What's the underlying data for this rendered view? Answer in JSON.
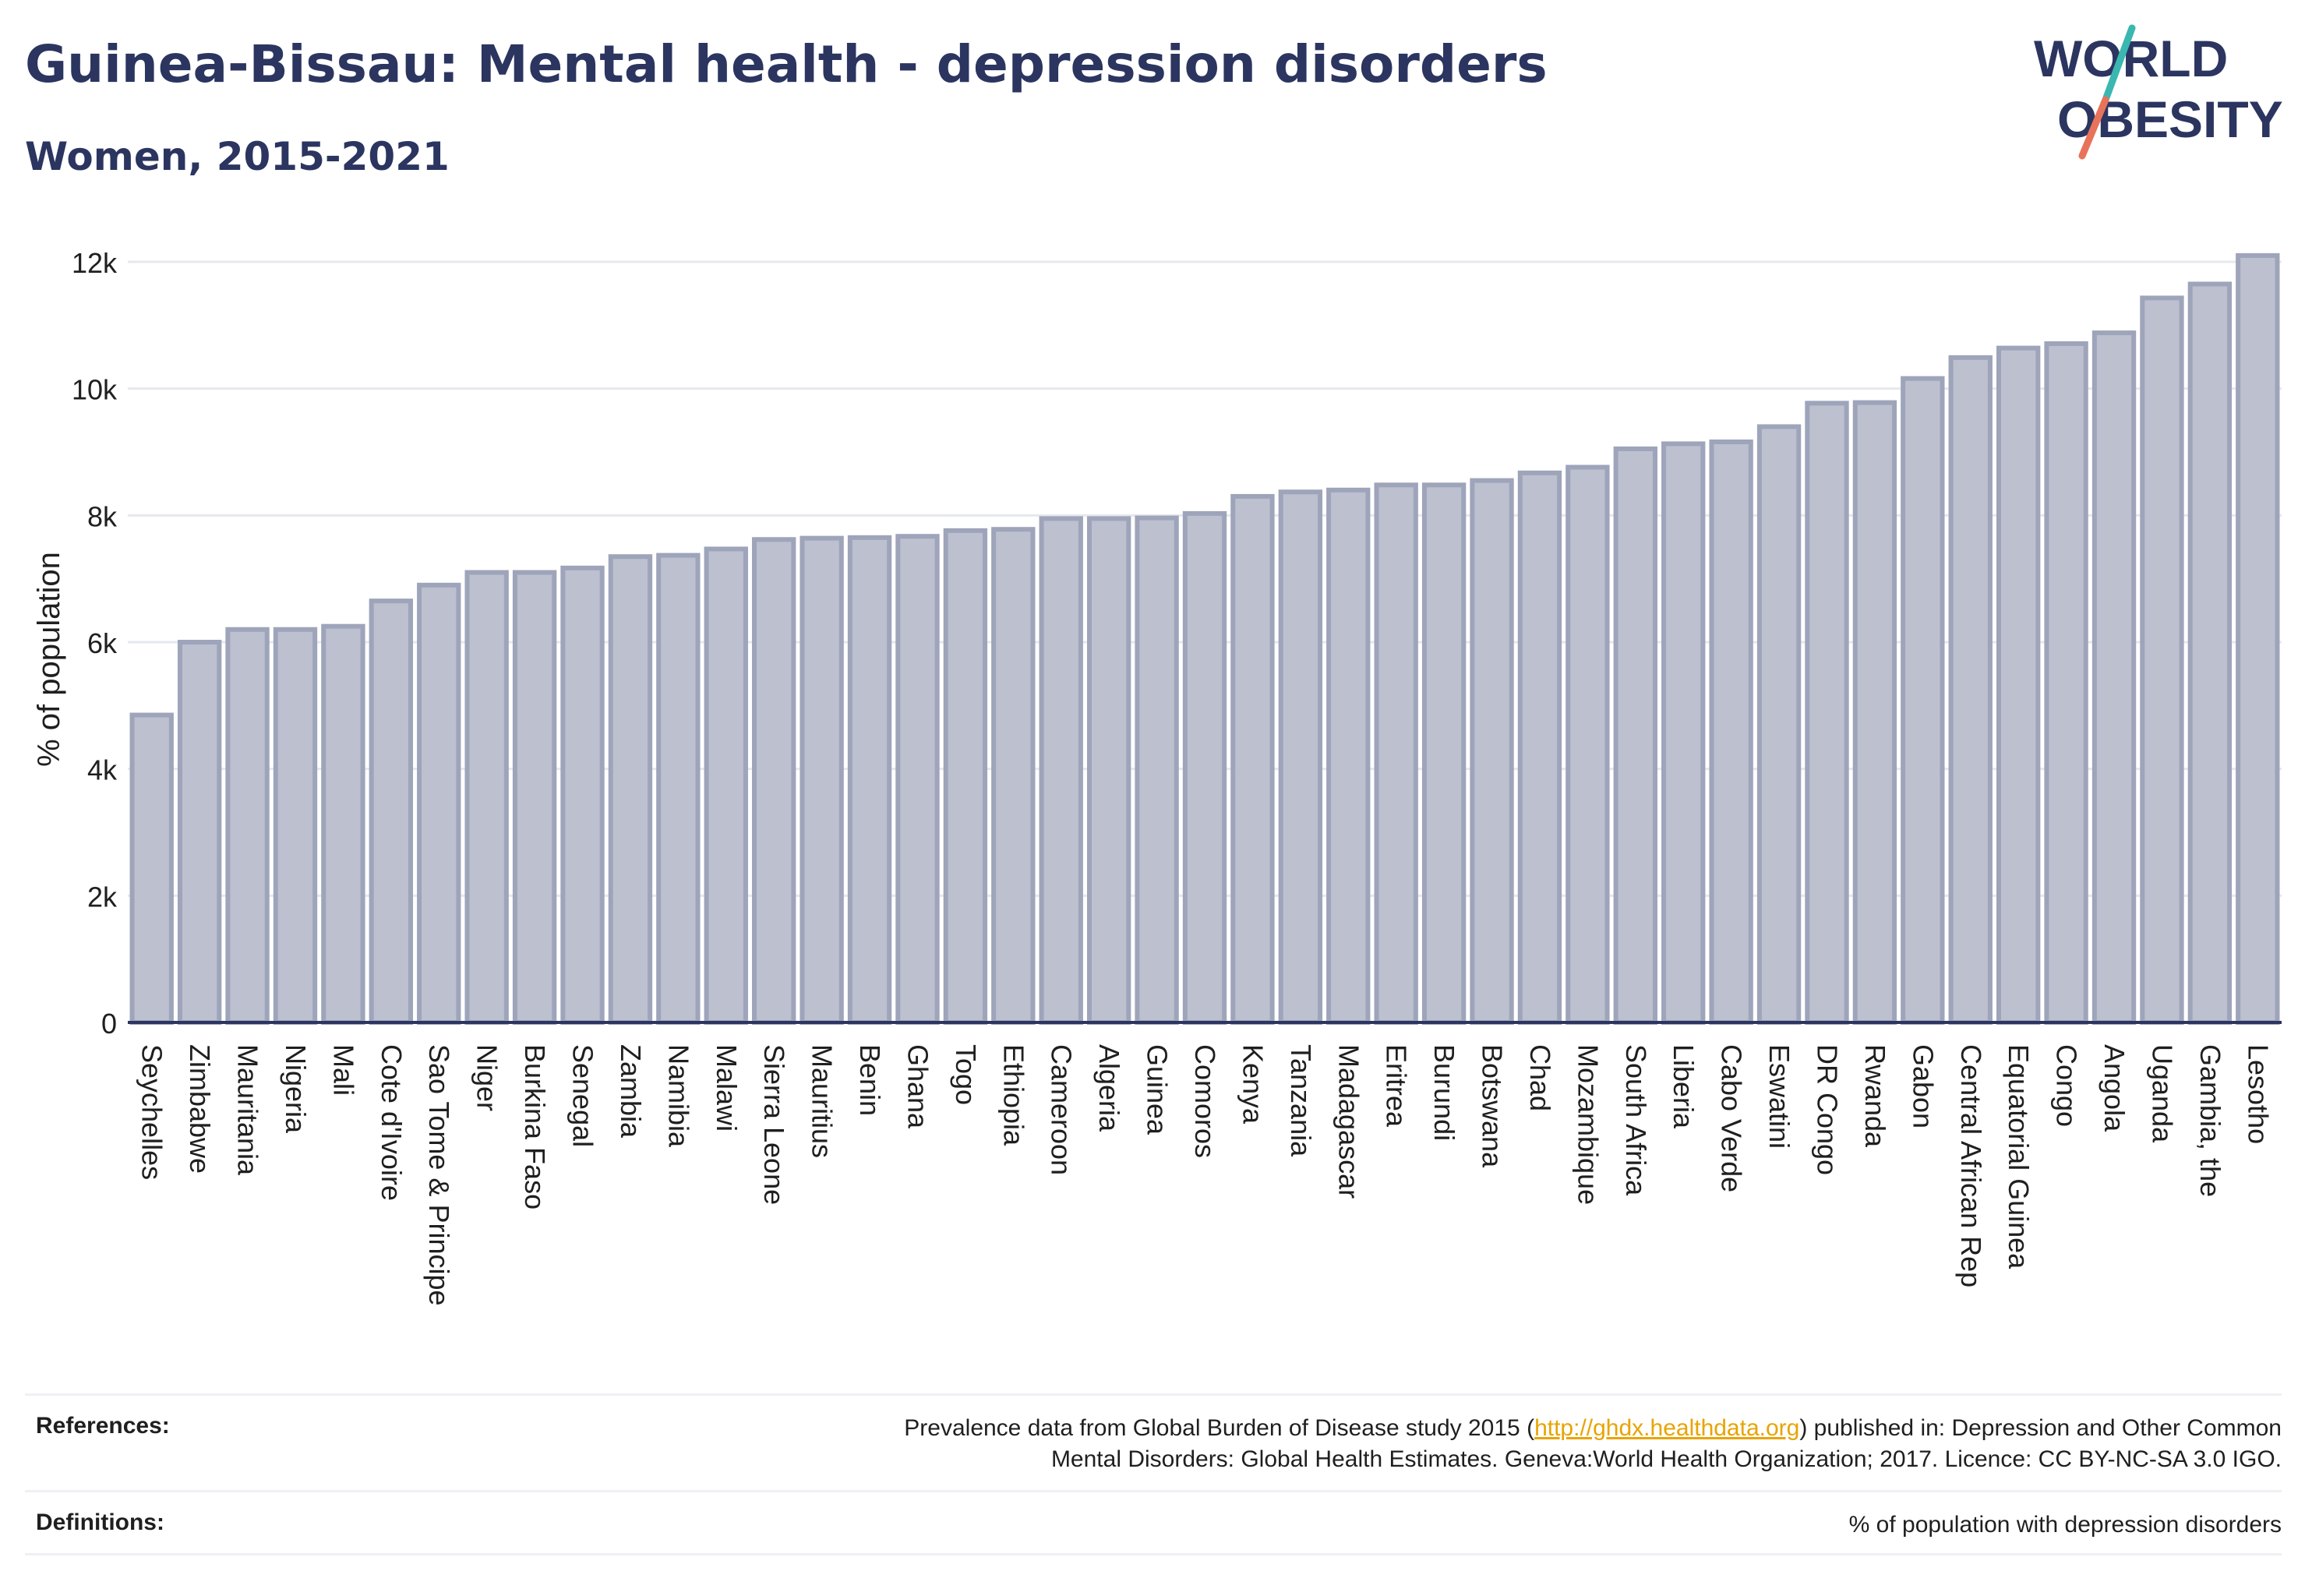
{
  "header": {
    "title": "Guinea-Bissau: Mental health - depression disorders",
    "subtitle": "Women, 2015-2021"
  },
  "logo": {
    "line1": "WORLD",
    "line2": "OBESITY",
    "colors": {
      "text": "#2b3560",
      "slash_top": "#3ab7b0",
      "slash_bottom": "#e8735a"
    }
  },
  "colors": {
    "bar_fill": "#bcc0cf",
    "bar_stroke": "#9ea4ba",
    "axis": "#2b3560",
    "grid": "#e6e8ee"
  },
  "chart_data": {
    "type": "bar",
    "title": "Guinea-Bissau: Mental health - depression disorders",
    "subtitle": "Women, 2015-2021",
    "xlabel": "",
    "ylabel": "% of population",
    "ylim": [
      0,
      12000
    ],
    "yticks": [
      0,
      2000,
      4000,
      6000,
      8000,
      10000,
      12000
    ],
    "ytick_labels": [
      "0",
      "2k",
      "4k",
      "6k",
      "8k",
      "10k",
      "12k"
    ],
    "grid": true,
    "categories": [
      "Seychelles",
      "Zimbabwe",
      "Mauritania",
      "Nigeria",
      "Mali",
      "Cote d'Ivoire",
      "Sao Tome & Principe",
      "Niger",
      "Burkina Faso",
      "Senegal",
      "Zambia",
      "Namibia",
      "Malawi",
      "Sierra Leone",
      "Mauritius",
      "Benin",
      "Ghana",
      "Togo",
      "Ethiopia",
      "Cameroon",
      "Algeria",
      "Guinea",
      "Comoros",
      "Kenya",
      "Tanzania",
      "Madagascar",
      "Eritrea",
      "Burundi",
      "Botswana",
      "Chad",
      "Mozambique",
      "South Africa",
      "Liberia",
      "Cabo Verde",
      "Eswatini",
      "DR Congo",
      "Rwanda",
      "Gabon",
      "Central African Rep",
      "Equatorial Guinea",
      "Congo",
      "Angola",
      "Uganda",
      "Gambia, the",
      "Lesotho"
    ],
    "values": [
      4850,
      6000,
      6200,
      6200,
      6250,
      6650,
      6900,
      7100,
      7100,
      7170,
      7350,
      7370,
      7470,
      7620,
      7640,
      7650,
      7670,
      7760,
      7780,
      7950,
      7950,
      7960,
      8030,
      8300,
      8370,
      8400,
      8480,
      8480,
      8550,
      8670,
      8760,
      9050,
      9130,
      9160,
      9400,
      9770,
      9780,
      10160,
      10490,
      10640,
      10710,
      10880,
      11430,
      11650,
      12100
    ]
  },
  "references": {
    "label": "References:",
    "text_before": "Prevalence data from Global Burden of Disease study 2015 (",
    "link": "http://ghdx.healthdata.org",
    "text_after": ") published in: Depression and Other Common",
    "line2": "Mental Disorders: Global Health Estimates. Geneva:World Health Organization; 2017. Licence: CC BY-NC-SA 3.0 IGO."
  },
  "definitions": {
    "label": "Definitions:",
    "text": "% of population with depression disorders"
  }
}
